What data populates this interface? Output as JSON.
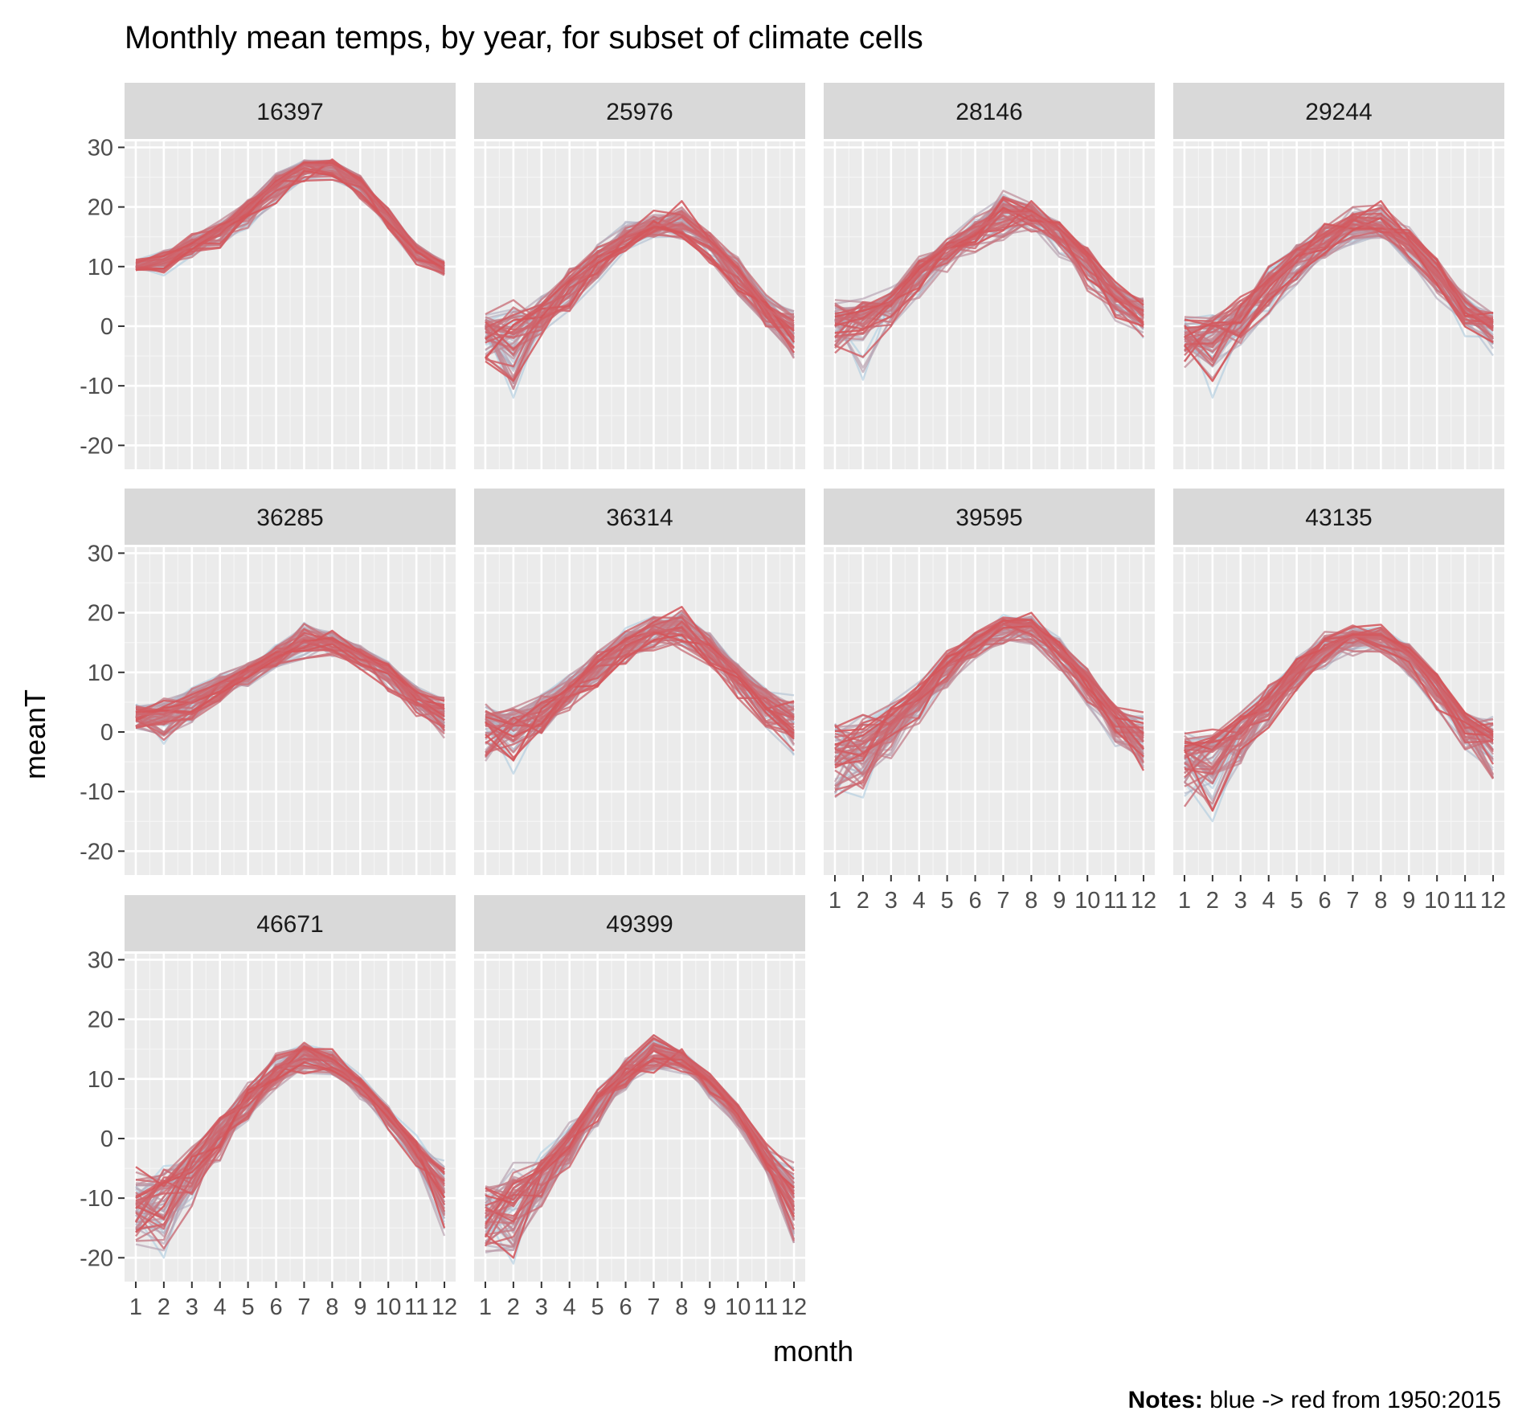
{
  "chart_data": {
    "type": "line",
    "title": "Monthly mean temps, by year, for subset of climate cells",
    "xlabel": "month",
    "ylabel": "meanT",
    "x": [
      1,
      2,
      3,
      4,
      5,
      6,
      7,
      8,
      9,
      10,
      11,
      12
    ],
    "x_tick_labels": [
      "1",
      "2",
      "3",
      "4",
      "5",
      "6",
      "7",
      "8",
      "9",
      "10",
      "11",
      "12"
    ],
    "y_ticks": [
      30,
      20,
      10,
      0,
      -10,
      -20
    ],
    "y_tick_labels": [
      "30",
      "20",
      "10",
      "0",
      "-10",
      "-20"
    ],
    "ylim": [
      -24,
      31
    ],
    "xlim": [
      0.6,
      12.4
    ],
    "grid": true,
    "facet_layout": {
      "ncol": 4,
      "nrow": 3
    },
    "color_scale": {
      "start": "#a6cee3",
      "end": "#d4555a",
      "years": [
        1950,
        2015
      ]
    },
    "note_label": "Notes:",
    "note_text": " blue -> red from 1950:2015",
    "panels": [
      {
        "cell": "16397",
        "lower": [
          9,
          8.5,
          11,
          12.5,
          16,
          20,
          24,
          24,
          21,
          16,
          10,
          8
        ],
        "mean": [
          10,
          11,
          13.5,
          16,
          19.5,
          24,
          27,
          27,
          24,
          18.5,
          13,
          10
        ],
        "upper": [
          11.5,
          13,
          16,
          18,
          21.5,
          26,
          28,
          28,
          25.5,
          20,
          14,
          11
        ]
      },
      {
        "cell": "25976",
        "lower": [
          -7,
          -12,
          -3,
          2,
          7,
          12,
          14,
          14,
          10,
          4,
          -1,
          -6
        ],
        "mean": [
          -1,
          -2,
          2,
          7,
          11,
          15,
          17,
          17,
          14,
          9,
          3,
          0
        ],
        "upper": [
          3,
          5,
          6,
          10,
          14,
          18,
          20,
          21,
          16,
          12,
          6,
          3
        ]
      },
      {
        "cell": "28146",
        "lower": [
          -5,
          -9,
          -1,
          4,
          8,
          12,
          14,
          15,
          11,
          5,
          0,
          -3
        ],
        "mean": [
          1,
          2,
          4,
          9,
          13,
          16,
          19,
          19,
          16,
          11,
          5,
          2
        ],
        "upper": [
          5,
          5,
          7,
          12,
          15,
          19,
          23,
          21,
          18,
          14,
          8,
          5
        ]
      },
      {
        "cell": "29244",
        "lower": [
          -8,
          -12,
          -4,
          1,
          6,
          11,
          13,
          14,
          10,
          4,
          -2,
          -6
        ],
        "mean": [
          -2,
          -1,
          2,
          7,
          11,
          14,
          17,
          17,
          14,
          9,
          3,
          0
        ],
        "upper": [
          3,
          3,
          6,
          11,
          14,
          18,
          21,
          21,
          17,
          12,
          6,
          3
        ]
      },
      {
        "cell": "36285",
        "lower": [
          -1,
          -2,
          1,
          4,
          7,
          10,
          12,
          12,
          10,
          6,
          2,
          -2
        ],
        "mean": [
          3,
          3,
          5,
          8,
          10,
          13,
          15,
          15,
          13,
          10,
          6,
          3
        ],
        "upper": [
          5,
          6,
          8,
          10,
          12,
          15,
          19,
          17,
          15,
          12,
          8,
          6
        ]
      },
      {
        "cell": "36314",
        "lower": [
          -6,
          -7,
          -2,
          3,
          7,
          11,
          13,
          13,
          10,
          5,
          0,
          -5
        ],
        "mean": [
          1,
          1,
          3,
          7,
          11,
          15,
          17,
          17,
          14,
          10,
          5,
          2
        ],
        "upper": [
          5,
          5,
          7,
          10,
          14,
          18,
          20,
          21,
          17,
          12,
          8,
          7
        ]
      },
      {
        "cell": "39595",
        "lower": [
          -13,
          -11,
          -5,
          1,
          7,
          12,
          14,
          14,
          10,
          4,
          -3,
          -9
        ],
        "mean": [
          -3,
          -2,
          1,
          6,
          11,
          15,
          18,
          18,
          14,
          9,
          2,
          -1
        ],
        "upper": [
          3,
          4,
          6,
          9,
          14,
          17,
          20,
          20,
          16,
          11,
          5,
          4
        ]
      },
      {
        "cell": "43135",
        "lower": [
          -14,
          -15,
          -7,
          0,
          6,
          10,
          12,
          13,
          9,
          3,
          -5,
          -10
        ],
        "mean": [
          -4,
          -3,
          0,
          5,
          10,
          14,
          16,
          16,
          13,
          8,
          2,
          -1
        ],
        "upper": [
          1,
          1,
          4,
          8,
          13,
          17,
          18,
          18,
          15,
          10,
          4,
          3
        ]
      },
      {
        "cell": "46671",
        "lower": [
          -19,
          -20,
          -12,
          -5,
          2,
          8,
          10,
          10,
          6,
          1,
          -5,
          -18
        ],
        "mean": [
          -11,
          -9,
          -5,
          1,
          7,
          11,
          14,
          13,
          9,
          4,
          -2,
          -8
        ],
        "upper": [
          -4,
          -3,
          -1,
          4,
          10,
          15,
          17,
          15,
          11,
          6,
          1,
          -3
        ]
      },
      {
        "cell": "49399",
        "lower": [
          -20,
          -21,
          -13,
          -6,
          1,
          7,
          10,
          10,
          6,
          1,
          -6,
          -19
        ],
        "mean": [
          -13,
          -11,
          -6,
          0,
          6,
          11,
          15,
          14,
          10,
          5,
          -3,
          -10
        ],
        "upper": [
          -6,
          -3,
          -2,
          3,
          9,
          14,
          18,
          15,
          11,
          6,
          0,
          -3
        ]
      }
    ]
  }
}
